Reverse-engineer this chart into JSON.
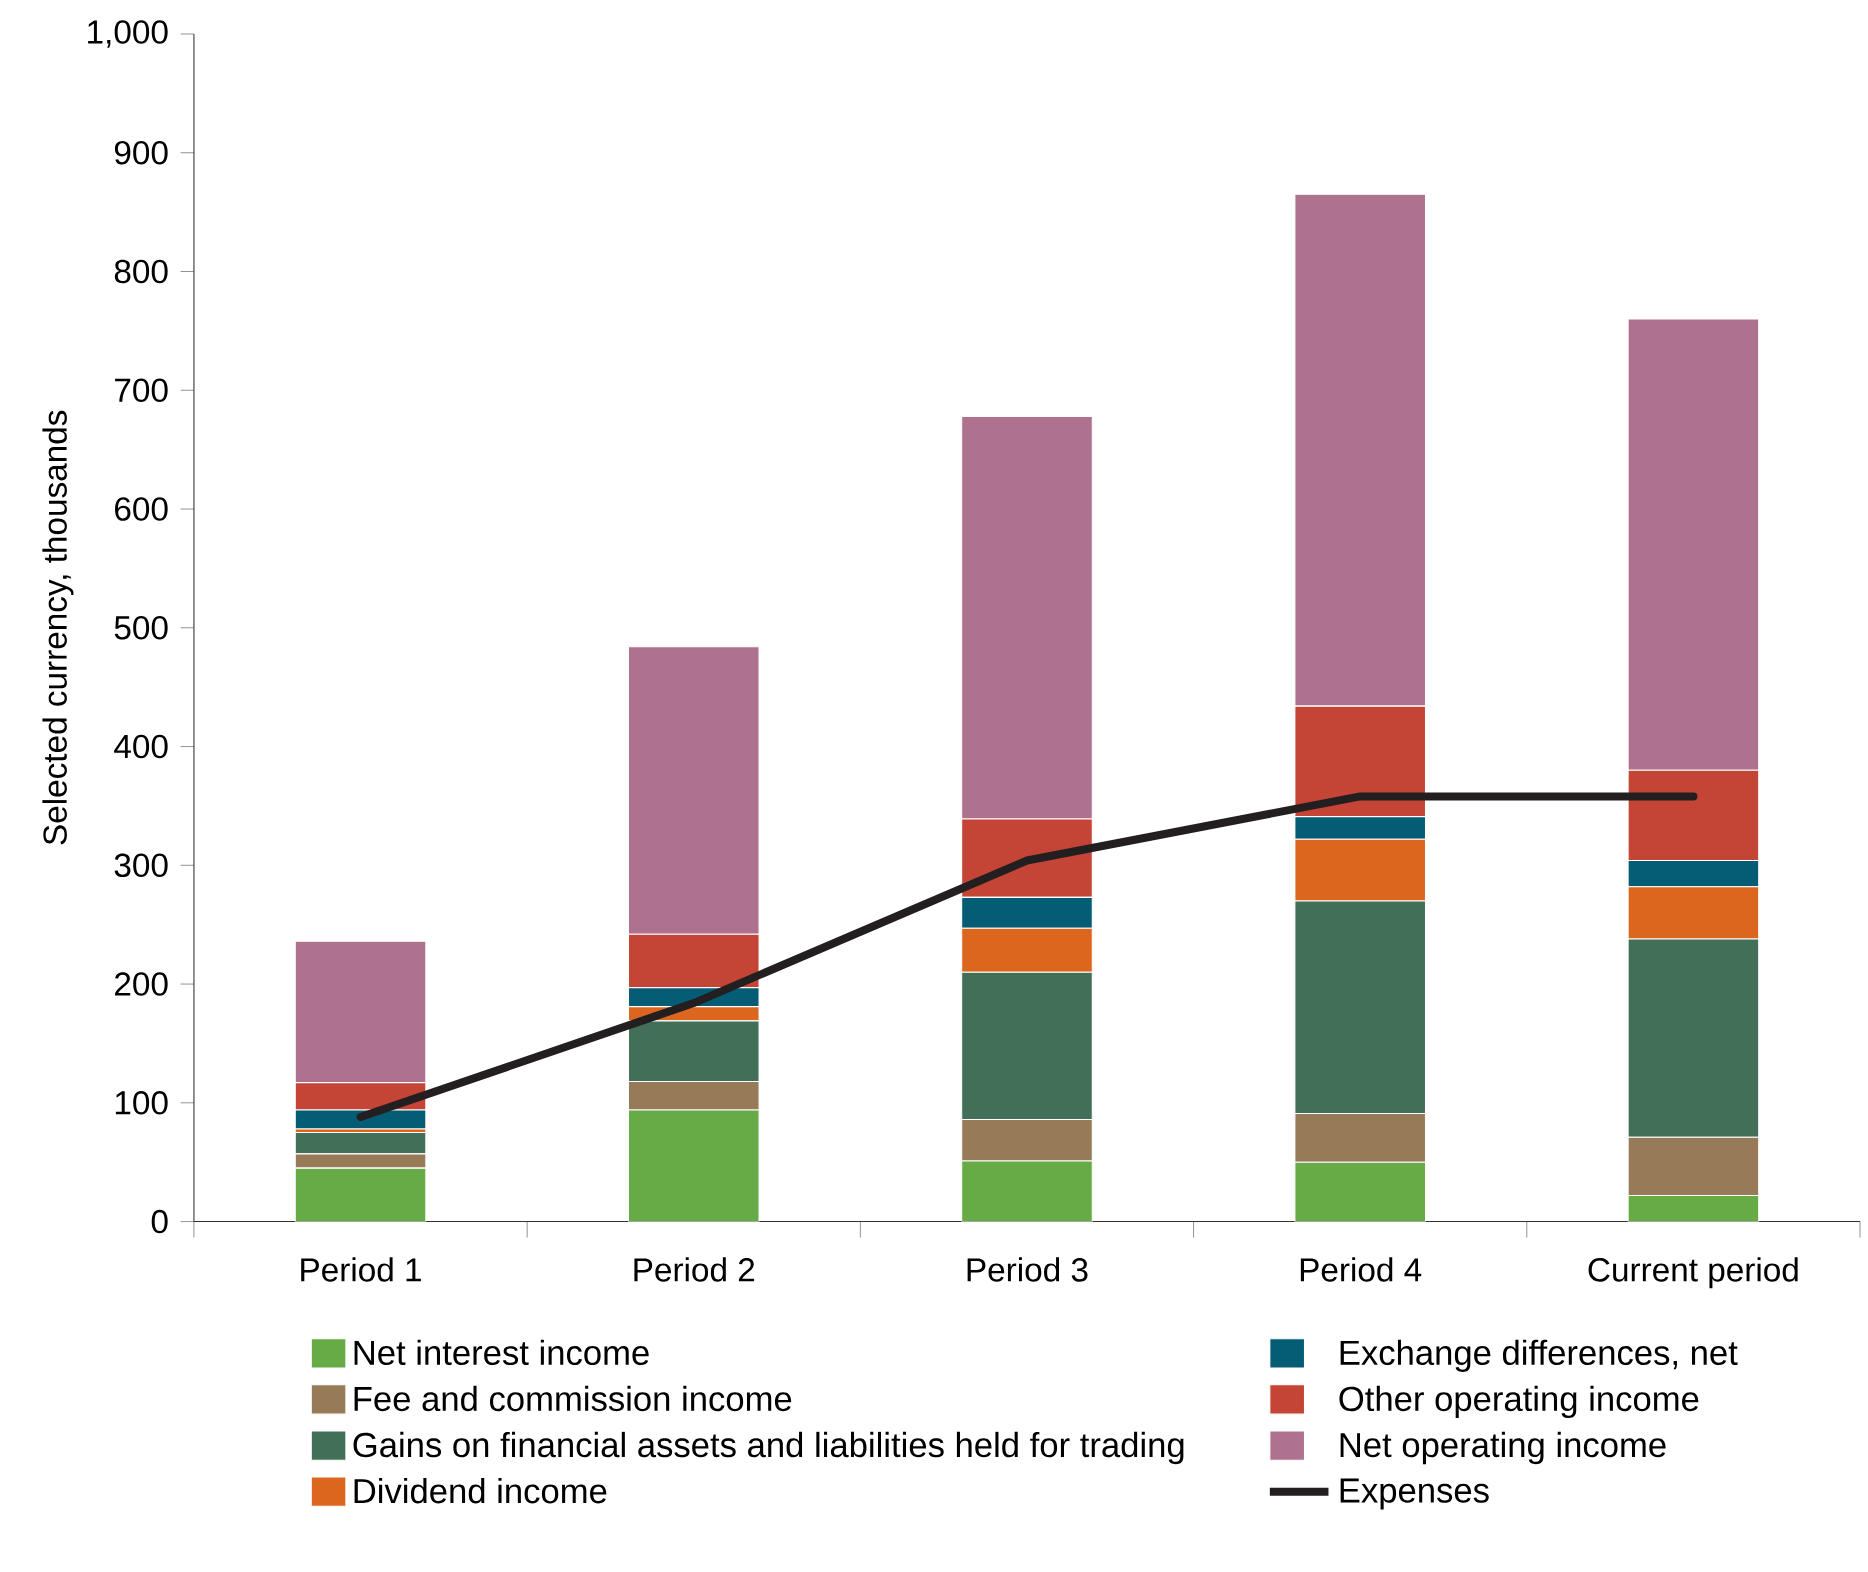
{
  "chart_data": {
    "type": "bar",
    "stacked": true,
    "ylabel": "Selected currency, thousands",
    "categories": [
      "Period 1",
      "Period 2",
      "Period 3",
      "Period 4",
      "Current period"
    ],
    "series": [
      {
        "name": "Net interest income",
        "color": "#67ab47",
        "values": [
          45,
          94,
          51,
          50,
          22
        ]
      },
      {
        "name": "Fee and commission income",
        "color": "#977a58",
        "values": [
          12,
          24,
          35,
          41,
          49
        ]
      },
      {
        "name": "Gains on financial assets and liabilities held for trading",
        "color": "#426f57",
        "values": [
          18,
          51,
          124,
          179,
          167
        ]
      },
      {
        "name": "Dividend income",
        "color": "#dd661f",
        "values": [
          3,
          12,
          37,
          52,
          44
        ]
      },
      {
        "name": "Exchange differences, net",
        "color": "#045c75",
        "values": [
          16,
          16,
          26,
          19,
          22
        ]
      },
      {
        "name": "Other operating income",
        "color": "#c44436",
        "values": [
          23,
          45,
          66,
          93,
          76
        ]
      },
      {
        "name": "Net operating income",
        "color": "#ae728f",
        "values": [
          119,
          242,
          339,
          431,
          380
        ]
      },
      {
        "name": "Expenses",
        "type": "line",
        "color": "#231f20",
        "values": [
          88,
          184,
          304,
          358,
          358
        ]
      }
    ],
    "ylim": [
      0,
      1000
    ],
    "yticks": [
      0,
      100,
      200,
      300,
      400,
      500,
      600,
      700,
      800,
      900,
      {
        "value": 1000,
        "label": "1,000"
      }
    ],
    "legend": "bottom",
    "grid": false,
    "marker": "none",
    "line_style": "solid"
  }
}
